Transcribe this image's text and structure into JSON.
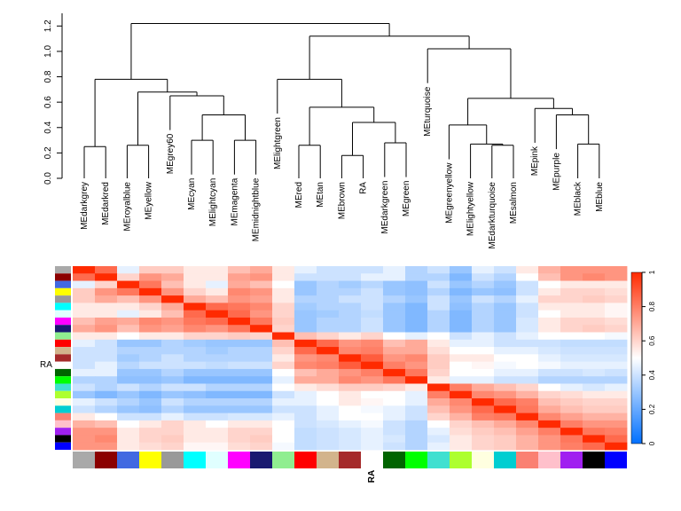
{
  "chart_data": [
    {
      "type": "dendrogram",
      "y_axis": {
        "ylim": [
          0,
          1.3
        ],
        "ticks": [
          "0.0",
          "0.2",
          "0.4",
          "0.6",
          "0.8",
          "1.0",
          "1.2"
        ]
      },
      "leaves": [
        "MEdarkgrey",
        "MEdarkred",
        "MEroyalblue",
        "MEyellow",
        "MEgrey60",
        "MEcyan",
        "MElightcyan",
        "MEmagenta",
        "MEmidnightblue",
        "MElightgreen",
        "MEred",
        "MEtan",
        "MEbrown",
        "RA",
        "MEdarkgreen",
        "MEgreen",
        "MEturquoise",
        "MEgreenyellow",
        "MElightyellow",
        "MEdarkturquoise",
        "MEsalmon",
        "MEpink",
        "MEpurple",
        "MEblack",
        "MEblue"
      ],
      "merges": [
        {
          "name": "n1",
          "left": "L0",
          "right": "L1",
          "height": 0.25
        },
        {
          "name": "n2",
          "left": "L2",
          "right": "L3",
          "height": 0.26
        },
        {
          "name": "n3",
          "left": "L5",
          "right": "L6",
          "height": 0.3
        },
        {
          "name": "n4",
          "left": "L7",
          "right": "L8",
          "height": 0.3
        },
        {
          "name": "n5",
          "left": "n3",
          "right": "n4",
          "height": 0.5
        },
        {
          "name": "n6",
          "left": "L4",
          "right": "n5",
          "height": 0.65
        },
        {
          "name": "n7",
          "left": "n2",
          "right": "n6",
          "height": 0.68
        },
        {
          "name": "n8",
          "left": "n1",
          "right": "n7",
          "height": 0.78
        },
        {
          "name": "n9",
          "left": "L10",
          "right": "L11",
          "height": 0.26
        },
        {
          "name": "n10",
          "left": "L12",
          "right": "L13",
          "height": 0.18
        },
        {
          "name": "n11",
          "left": "L14",
          "right": "L15",
          "height": 0.28
        },
        {
          "name": "n12",
          "left": "n10",
          "right": "n11",
          "height": 0.44
        },
        {
          "name": "n13",
          "left": "n9",
          "right": "n12",
          "height": 0.56
        },
        {
          "name": "n14",
          "left": "L9",
          "right": "n13",
          "height": 0.78
        },
        {
          "name": "n15",
          "left": "L19",
          "right": "L20",
          "height": 0.26
        },
        {
          "name": "n16",
          "left": "L18",
          "right": "n15",
          "height": 0.27
        },
        {
          "name": "n17",
          "left": "L17",
          "right": "n16",
          "height": 0.42
        },
        {
          "name": "n18",
          "left": "L23",
          "right": "L24",
          "height": 0.27
        },
        {
          "name": "n19",
          "left": "L22",
          "right": "n18",
          "height": 0.5
        },
        {
          "name": "n20",
          "left": "L21",
          "right": "n19",
          "height": 0.55
        },
        {
          "name": "n21",
          "left": "n17",
          "right": "n20",
          "height": 0.63
        },
        {
          "name": "n22",
          "left": "L16",
          "right": "n21",
          "height": 1.02
        },
        {
          "name": "n23",
          "left": "n14",
          "right": "n22",
          "height": 1.12
        },
        {
          "name": "n24",
          "left": "n8",
          "right": "n23",
          "height": 1.22
        }
      ]
    },
    {
      "type": "heatmap",
      "ylabel": "RA",
      "xlabel": "RA",
      "module_colors": [
        "#A9A9A9",
        "#8B0000",
        "#4169E1",
        "#FFFF00",
        "#999999",
        "#00FFFF",
        "#E0FFFF",
        "#FF00FF",
        "#191970",
        "#90EE90",
        "#FF0000",
        "#D2B48C",
        "#A52A2A",
        "#FFFFFF",
        "#006400",
        "#00FF00",
        "#40E0D0",
        "#ADFF2F",
        "#FFFFE0",
        "#00CED1",
        "#FA8072",
        "#FFC0CB",
        "#A020F0",
        "#000000",
        "#0000FF"
      ],
      "values": [
        [
          1.0,
          0.85,
          0.45,
          0.62,
          0.62,
          0.55,
          0.55,
          0.65,
          0.7,
          0.55,
          0.45,
          0.4,
          0.4,
          0.4,
          0.45,
          0.35,
          0.4,
          0.3,
          0.45,
          0.4,
          0.55,
          0.68,
          0.75,
          0.75,
          0.75
        ],
        [
          0.85,
          1.0,
          0.6,
          0.75,
          0.7,
          0.55,
          0.55,
          0.72,
          0.75,
          0.55,
          0.4,
          0.4,
          0.4,
          0.45,
          0.45,
          0.35,
          0.35,
          0.25,
          0.4,
          0.35,
          0.5,
          0.65,
          0.75,
          0.78,
          0.75
        ],
        [
          0.45,
          0.6,
          1.0,
          0.82,
          0.65,
          0.55,
          0.45,
          0.7,
          0.65,
          0.5,
          0.3,
          0.35,
          0.32,
          0.36,
          0.3,
          0.28,
          0.4,
          0.3,
          0.35,
          0.3,
          0.4,
          0.5,
          0.55,
          0.55,
          0.55
        ],
        [
          0.62,
          0.75,
          0.82,
          1.0,
          0.75,
          0.6,
          0.55,
          0.78,
          0.75,
          0.55,
          0.3,
          0.35,
          0.35,
          0.4,
          0.3,
          0.28,
          0.35,
          0.25,
          0.3,
          0.28,
          0.4,
          0.55,
          0.6,
          0.6,
          0.58
        ],
        [
          0.62,
          0.7,
          0.65,
          0.75,
          1.0,
          0.7,
          0.65,
          0.75,
          0.72,
          0.55,
          0.35,
          0.35,
          0.4,
          0.4,
          0.35,
          0.3,
          0.4,
          0.3,
          0.4,
          0.35,
          0.45,
          0.6,
          0.6,
          0.62,
          0.6
        ],
        [
          0.55,
          0.55,
          0.55,
          0.6,
          0.7,
          1.0,
          0.85,
          0.82,
          0.78,
          0.6,
          0.32,
          0.35,
          0.35,
          0.4,
          0.3,
          0.25,
          0.4,
          0.28,
          0.35,
          0.3,
          0.4,
          0.55,
          0.55,
          0.55,
          0.52
        ],
        [
          0.55,
          0.55,
          0.45,
          0.55,
          0.65,
          0.85,
          1.0,
          0.85,
          0.75,
          0.6,
          0.3,
          0.32,
          0.35,
          0.38,
          0.3,
          0.25,
          0.35,
          0.25,
          0.35,
          0.3,
          0.4,
          0.5,
          0.55,
          0.55,
          0.52
        ],
        [
          0.65,
          0.72,
          0.7,
          0.78,
          0.75,
          0.82,
          0.85,
          1.0,
          0.82,
          0.62,
          0.3,
          0.35,
          0.35,
          0.4,
          0.3,
          0.25,
          0.35,
          0.25,
          0.35,
          0.3,
          0.42,
          0.55,
          0.6,
          0.6,
          0.58
        ],
        [
          0.7,
          0.75,
          0.65,
          0.75,
          0.72,
          0.78,
          0.75,
          0.82,
          1.0,
          0.6,
          0.3,
          0.35,
          0.35,
          0.4,
          0.3,
          0.25,
          0.35,
          0.25,
          0.35,
          0.3,
          0.42,
          0.55,
          0.6,
          0.62,
          0.6
        ],
        [
          0.55,
          0.55,
          0.5,
          0.55,
          0.55,
          0.6,
          0.6,
          0.62,
          0.6,
          1.0,
          0.65,
          0.6,
          0.55,
          0.6,
          0.5,
          0.45,
          0.5,
          0.4,
          0.45,
          0.4,
          0.45,
          0.5,
          0.5,
          0.5,
          0.48
        ],
        [
          0.45,
          0.4,
          0.3,
          0.3,
          0.35,
          0.32,
          0.3,
          0.3,
          0.3,
          0.65,
          1.0,
          0.85,
          0.75,
          0.78,
          0.65,
          0.7,
          0.55,
          0.45,
          0.45,
          0.4,
          0.4,
          0.4,
          0.38,
          0.38,
          0.38
        ],
        [
          0.4,
          0.4,
          0.35,
          0.35,
          0.35,
          0.35,
          0.32,
          0.35,
          0.35,
          0.6,
          0.85,
          1.0,
          0.78,
          0.8,
          0.7,
          0.7,
          0.58,
          0.5,
          0.5,
          0.45,
          0.45,
          0.42,
          0.4,
          0.4,
          0.4
        ],
        [
          0.4,
          0.4,
          0.32,
          0.35,
          0.4,
          0.35,
          0.35,
          0.35,
          0.35,
          0.55,
          0.75,
          0.78,
          1.0,
          0.88,
          0.75,
          0.78,
          0.62,
          0.55,
          0.55,
          0.5,
          0.5,
          0.45,
          0.42,
          0.42,
          0.42
        ],
        [
          0.4,
          0.45,
          0.36,
          0.4,
          0.4,
          0.4,
          0.38,
          0.4,
          0.4,
          0.6,
          0.78,
          0.8,
          0.88,
          1.0,
          0.8,
          0.75,
          0.62,
          0.5,
          0.52,
          0.48,
          0.5,
          0.48,
          0.45,
          0.45,
          0.45
        ],
        [
          0.45,
          0.45,
          0.3,
          0.3,
          0.35,
          0.3,
          0.3,
          0.3,
          0.3,
          0.5,
          0.65,
          0.7,
          0.75,
          0.8,
          1.0,
          0.82,
          0.6,
          0.5,
          0.5,
          0.45,
          0.45,
          0.4,
          0.4,
          0.42,
          0.4
        ],
        [
          0.35,
          0.35,
          0.28,
          0.28,
          0.3,
          0.25,
          0.25,
          0.25,
          0.25,
          0.45,
          0.7,
          0.7,
          0.78,
          0.75,
          0.82,
          1.0,
          0.55,
          0.45,
          0.45,
          0.4,
          0.4,
          0.35,
          0.35,
          0.35,
          0.35
        ],
        [
          0.4,
          0.35,
          0.4,
          0.35,
          0.4,
          0.4,
          0.35,
          0.35,
          0.35,
          0.5,
          0.55,
          0.58,
          0.62,
          0.62,
          0.6,
          0.55,
          1.0,
          0.8,
          0.7,
          0.65,
          0.6,
          0.5,
          0.45,
          0.42,
          0.45
        ],
        [
          0.3,
          0.25,
          0.3,
          0.25,
          0.3,
          0.28,
          0.25,
          0.25,
          0.25,
          0.4,
          0.45,
          0.5,
          0.55,
          0.5,
          0.5,
          0.45,
          0.8,
          1.0,
          0.78,
          0.75,
          0.68,
          0.6,
          0.58,
          0.55,
          0.55
        ],
        [
          0.45,
          0.4,
          0.35,
          0.3,
          0.4,
          0.35,
          0.35,
          0.35,
          0.35,
          0.45,
          0.45,
          0.5,
          0.55,
          0.52,
          0.5,
          0.45,
          0.7,
          0.78,
          1.0,
          0.85,
          0.8,
          0.65,
          0.62,
          0.6,
          0.6
        ],
        [
          0.4,
          0.35,
          0.3,
          0.28,
          0.35,
          0.3,
          0.3,
          0.3,
          0.3,
          0.4,
          0.4,
          0.45,
          0.5,
          0.48,
          0.45,
          0.4,
          0.65,
          0.75,
          0.85,
          1.0,
          0.82,
          0.7,
          0.65,
          0.62,
          0.62
        ],
        [
          0.55,
          0.5,
          0.4,
          0.4,
          0.45,
          0.4,
          0.4,
          0.42,
          0.42,
          0.45,
          0.4,
          0.45,
          0.5,
          0.5,
          0.45,
          0.4,
          0.6,
          0.68,
          0.8,
          0.82,
          1.0,
          0.78,
          0.72,
          0.68,
          0.68
        ],
        [
          0.68,
          0.65,
          0.5,
          0.55,
          0.6,
          0.55,
          0.5,
          0.55,
          0.55,
          0.5,
          0.4,
          0.42,
          0.45,
          0.48,
          0.4,
          0.35,
          0.5,
          0.6,
          0.65,
          0.7,
          0.78,
          1.0,
          0.8,
          0.75,
          0.75
        ],
        [
          0.75,
          0.75,
          0.55,
          0.6,
          0.6,
          0.55,
          0.55,
          0.6,
          0.6,
          0.5,
          0.38,
          0.4,
          0.42,
          0.45,
          0.4,
          0.35,
          0.45,
          0.58,
          0.62,
          0.65,
          0.72,
          0.8,
          1.0,
          0.82,
          0.8
        ],
        [
          0.75,
          0.78,
          0.55,
          0.6,
          0.62,
          0.55,
          0.55,
          0.6,
          0.62,
          0.5,
          0.38,
          0.4,
          0.42,
          0.45,
          0.42,
          0.35,
          0.42,
          0.55,
          0.6,
          0.62,
          0.68,
          0.75,
          0.82,
          1.0,
          0.85
        ],
        [
          0.75,
          0.75,
          0.55,
          0.58,
          0.6,
          0.52,
          0.52,
          0.58,
          0.6,
          0.48,
          0.38,
          0.4,
          0.42,
          0.45,
          0.4,
          0.35,
          0.45,
          0.55,
          0.6,
          0.62,
          0.68,
          0.75,
          0.8,
          0.85,
          1.0
        ]
      ],
      "colorbar": {
        "range": [
          0,
          1
        ],
        "ticks": [
          "0",
          "0.2",
          "0.4",
          "0.6",
          "0.8",
          "1"
        ],
        "low": "#0070FF",
        "mid": "#FFFFFF",
        "high": "#FF2A00"
      }
    }
  ]
}
